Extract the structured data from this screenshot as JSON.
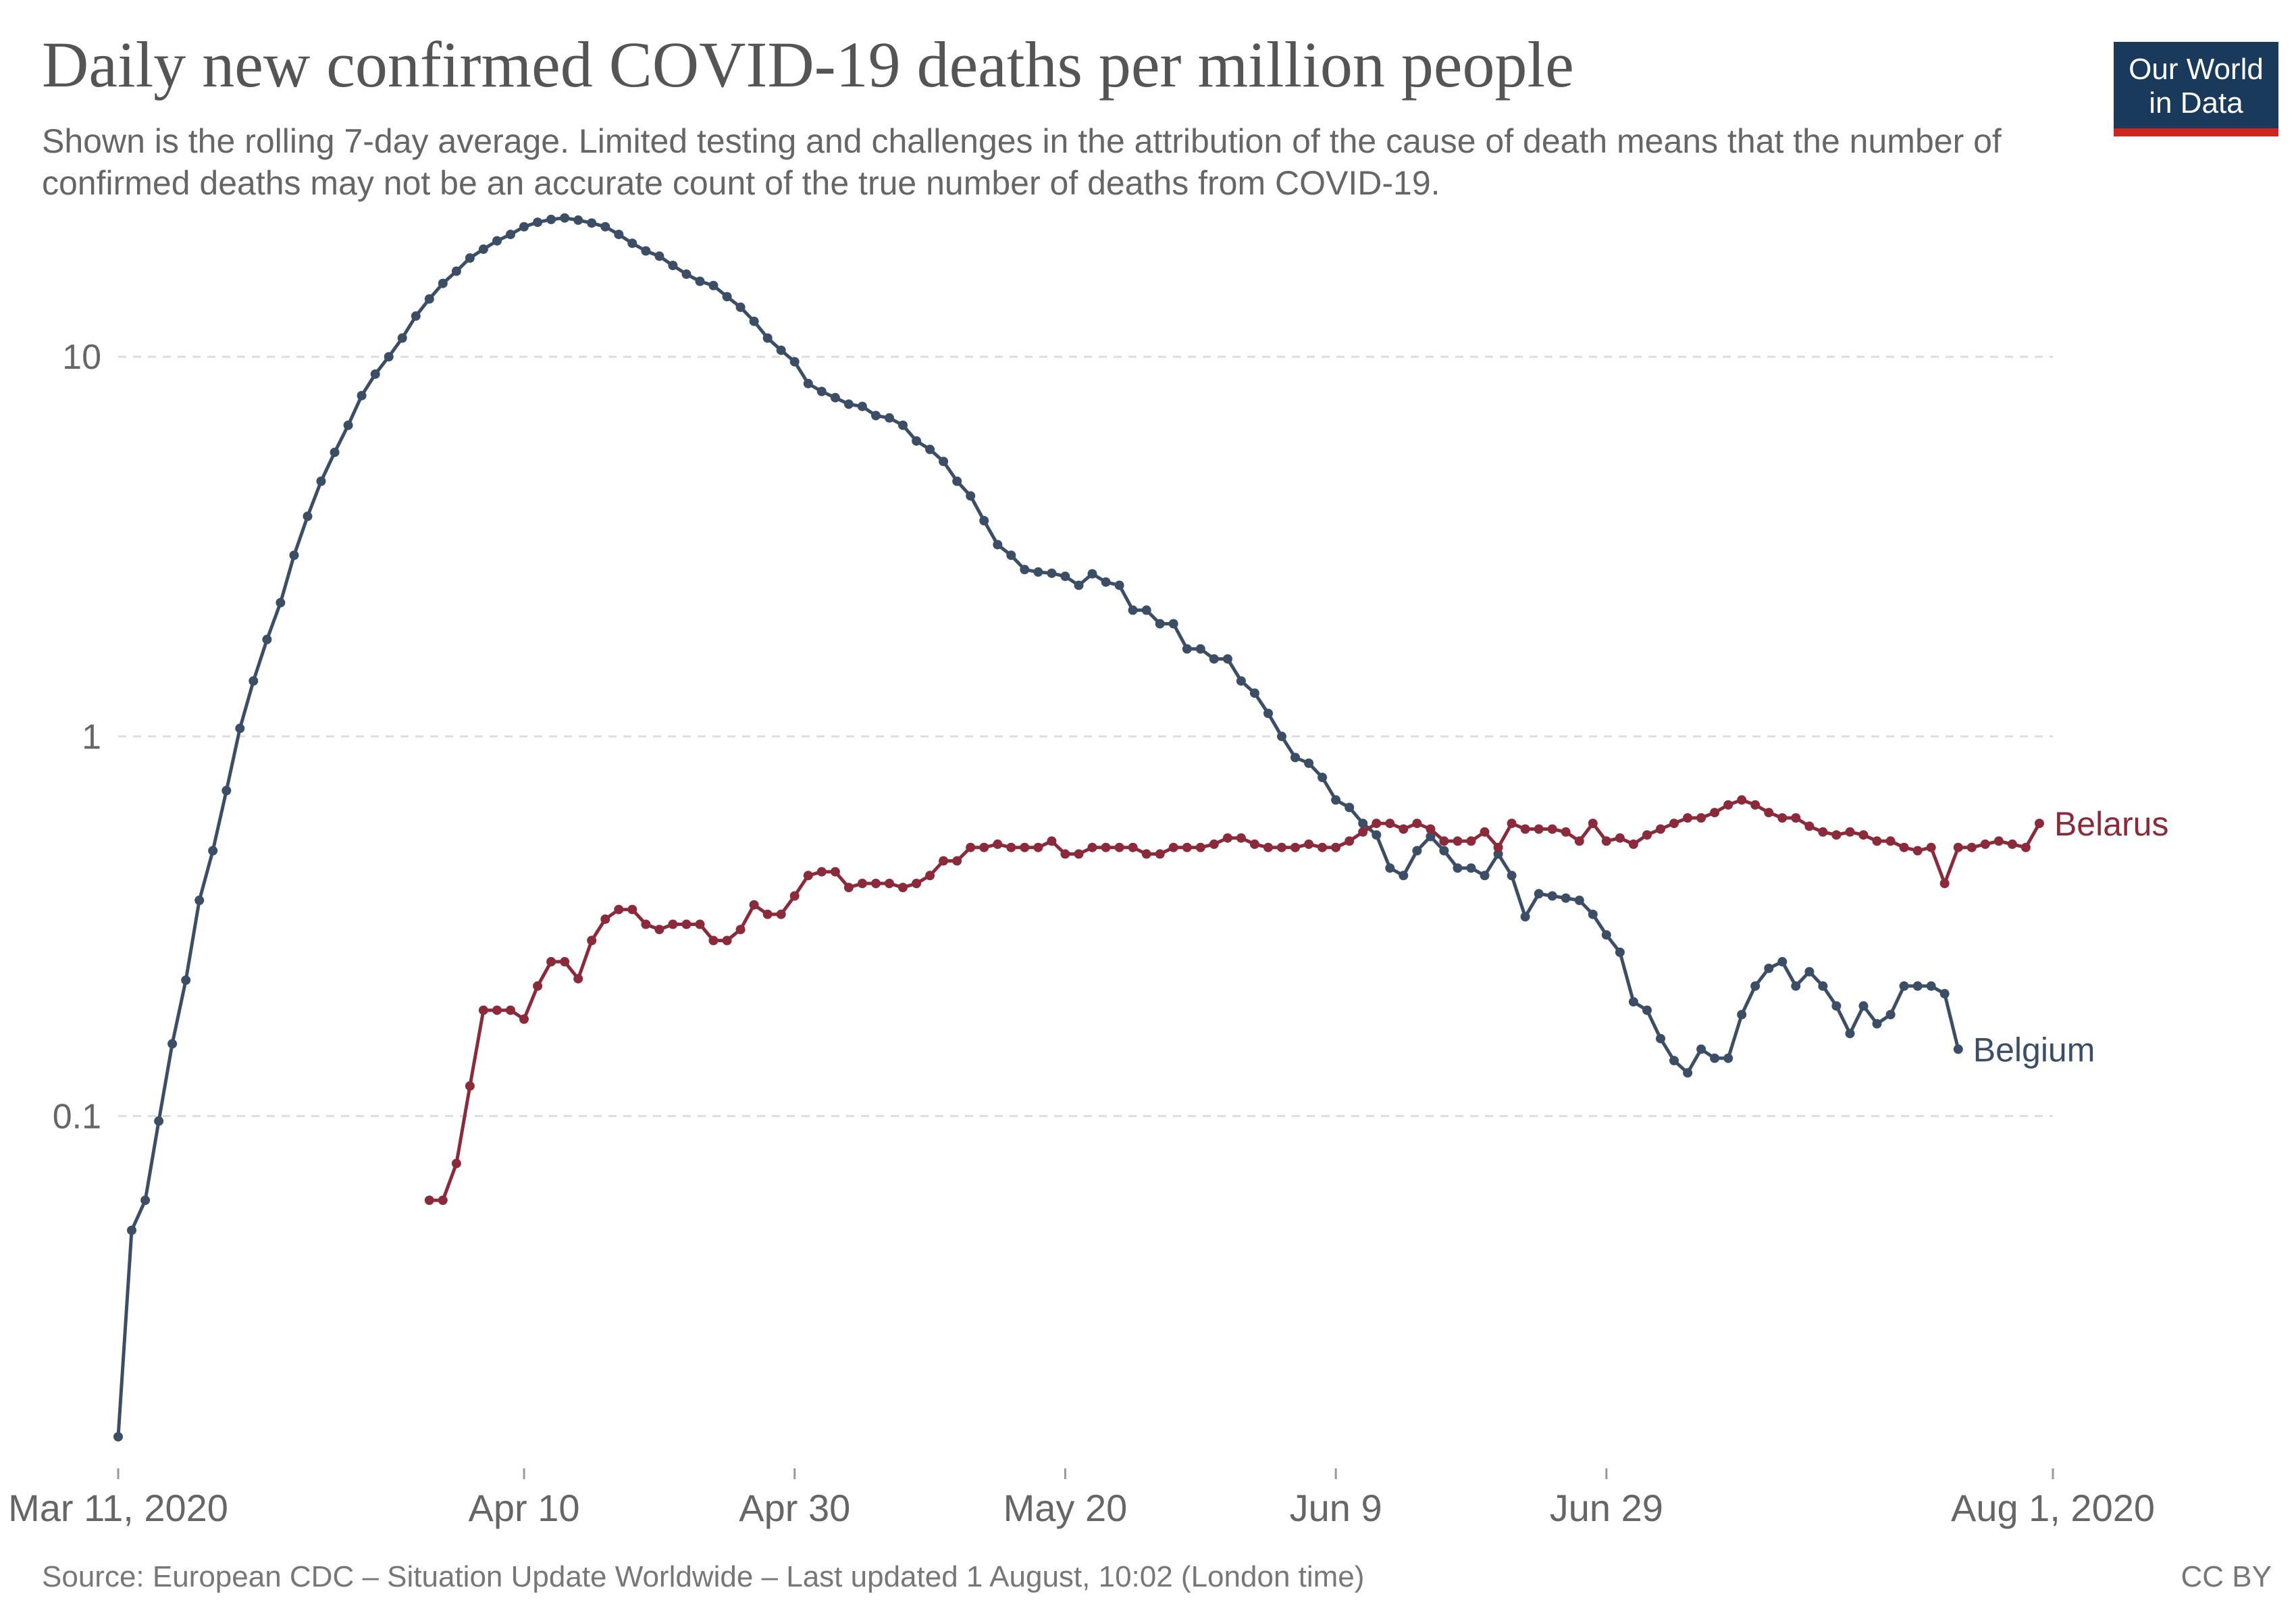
{
  "header": {
    "title": "Daily new confirmed COVID-19 deaths per million people",
    "subtitle": "Shown is the rolling 7-day average. Limited testing and challenges in the attribution of the cause of death means that the number of confirmed deaths may not be an accurate count of the true number of deaths from COVID-19."
  },
  "logo": {
    "line1": "Our World",
    "line2": "in Data",
    "bg_color": "#1a3a5c",
    "stripe_color": "#ce261e"
  },
  "footer": {
    "source": "Source: European CDC – Situation Update Worldwide – Last updated 1 August, 10:02 (London time)",
    "license": "CC BY"
  },
  "chart_data": {
    "type": "line",
    "title": "Daily new confirmed COVID-19 deaths per million people",
    "xlabel": "",
    "ylabel": "",
    "y_scale": "log",
    "ylim": [
      0.012,
      30
    ],
    "xlim": [
      "2020-03-11",
      "2020-08-01"
    ],
    "grid": "horizontal dashed",
    "legend": "line-end labels",
    "x_ticks": [
      {
        "date": "2020-03-11",
        "label": "Mar 11, 2020"
      },
      {
        "date": "2020-04-10",
        "label": "Apr 10"
      },
      {
        "date": "2020-04-30",
        "label": "Apr 30"
      },
      {
        "date": "2020-05-20",
        "label": "May 20"
      },
      {
        "date": "2020-06-09",
        "label": "Jun 9"
      },
      {
        "date": "2020-06-29",
        "label": "Jun 29"
      },
      {
        "date": "2020-08-01",
        "label": "Aug 1, 2020"
      }
    ],
    "y_ticks": [
      {
        "value": 0.1,
        "label": "0.1"
      },
      {
        "value": 1,
        "label": "1"
      },
      {
        "value": 10,
        "label": "10"
      }
    ],
    "series": [
      {
        "name": "Belgium",
        "color": "#3b4e66",
        "start_date": "2020-03-11",
        "values": [
          0.0143,
          0.05,
          0.06,
          0.097,
          0.155,
          0.228,
          0.37,
          0.5,
          0.72,
          1.05,
          1.4,
          1.8,
          2.25,
          3.0,
          3.8,
          4.7,
          5.6,
          6.6,
          7.9,
          9.0,
          10.0,
          11.2,
          12.8,
          14.2,
          15.6,
          16.8,
          18.2,
          19.2,
          20.2,
          21.0,
          22.0,
          22.6,
          23.0,
          23.2,
          22.9,
          22.5,
          22.0,
          21.0,
          19.9,
          19.0,
          18.4,
          17.4,
          16.5,
          15.8,
          15.4,
          14.4,
          13.5,
          12.4,
          11.2,
          10.4,
          9.7,
          8.5,
          8.1,
          7.8,
          7.5,
          7.4,
          7.0,
          6.9,
          6.6,
          6.0,
          5.7,
          5.3,
          4.7,
          4.3,
          3.7,
          3.2,
          3.0,
          2.75,
          2.71,
          2.69,
          2.64,
          2.5,
          2.68,
          2.55,
          2.5,
          2.15,
          2.15,
          1.98,
          1.98,
          1.7,
          1.7,
          1.6,
          1.6,
          1.4,
          1.3,
          1.15,
          1.0,
          0.88,
          0.85,
          0.78,
          0.68,
          0.65,
          0.59,
          0.55,
          0.45,
          0.43,
          0.5,
          0.545,
          0.5,
          0.45,
          0.45,
          0.43,
          0.49,
          0.43,
          0.335,
          0.385,
          0.38,
          0.375,
          0.37,
          0.34,
          0.3,
          0.27,
          0.2,
          0.19,
          0.16,
          0.14,
          0.13,
          0.15,
          0.142,
          0.142,
          0.185,
          0.22,
          0.245,
          0.255,
          0.22,
          0.24,
          0.22,
          0.195,
          0.165,
          0.195,
          0.175,
          0.185,
          0.22,
          0.22,
          0.22,
          0.21,
          0.15
        ]
      },
      {
        "name": "Belarus",
        "color": "#8b2a3b",
        "start_date": "2020-04-03",
        "values": [
          0.06,
          0.06,
          0.075,
          0.12,
          0.19,
          0.19,
          0.19,
          0.18,
          0.22,
          0.255,
          0.255,
          0.23,
          0.29,
          0.33,
          0.35,
          0.35,
          0.32,
          0.31,
          0.32,
          0.32,
          0.32,
          0.29,
          0.29,
          0.31,
          0.36,
          0.34,
          0.34,
          0.38,
          0.43,
          0.44,
          0.44,
          0.4,
          0.41,
          0.41,
          0.41,
          0.4,
          0.41,
          0.43,
          0.47,
          0.47,
          0.51,
          0.51,
          0.52,
          0.51,
          0.51,
          0.51,
          0.53,
          0.49,
          0.49,
          0.51,
          0.51,
          0.51,
          0.51,
          0.49,
          0.49,
          0.51,
          0.51,
          0.51,
          0.52,
          0.54,
          0.54,
          0.52,
          0.51,
          0.51,
          0.51,
          0.52,
          0.51,
          0.51,
          0.53,
          0.56,
          0.59,
          0.59,
          0.57,
          0.59,
          0.57,
          0.53,
          0.53,
          0.53,
          0.56,
          0.51,
          0.59,
          0.57,
          0.57,
          0.57,
          0.56,
          0.53,
          0.59,
          0.53,
          0.54,
          0.52,
          0.55,
          0.57,
          0.59,
          0.61,
          0.61,
          0.63,
          0.66,
          0.68,
          0.66,
          0.63,
          0.61,
          0.61,
          0.58,
          0.56,
          0.55,
          0.56,
          0.55,
          0.53,
          0.53,
          0.51,
          0.5,
          0.51,
          0.41,
          0.51,
          0.51,
          0.52,
          0.53,
          0.52,
          0.51,
          0.59
        ]
      }
    ]
  }
}
